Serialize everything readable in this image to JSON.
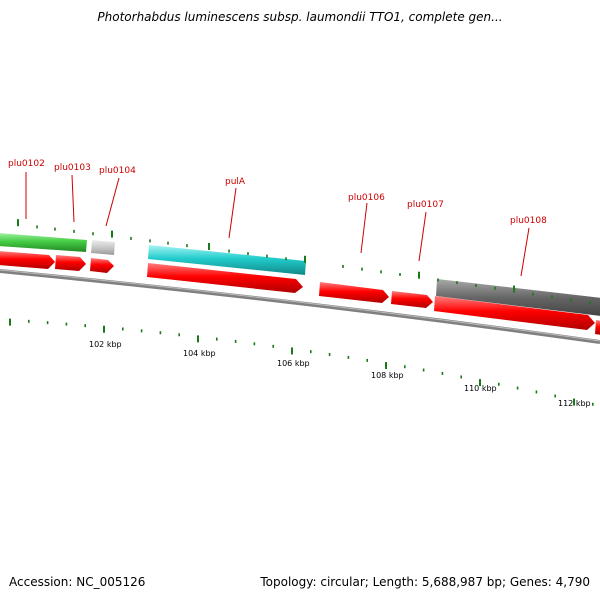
{
  "header": {
    "title": "Photorhabdus luminescens subsp. laumondii TTO1, complete gen..."
  },
  "footer": {
    "accession": "Accession: NC_005126",
    "stats": "Topology: circular; Length: 5,688,987 bp; Genes: 4,790"
  },
  "colors": {
    "forward_cds": "#ff0000",
    "highlight_green": "#44cc44",
    "highlight_cyan": "#22cccc",
    "highlight_gray_light": "#c8c8c8",
    "highlight_gray_dark": "#666666",
    "backbone": "#808080",
    "tick": "#1a7a1a",
    "label": "#cc0000"
  },
  "genes": [
    {
      "name": "plu0102"
    },
    {
      "name": "plu0103"
    },
    {
      "name": "plu0104"
    },
    {
      "name": "pulA"
    },
    {
      "name": "plu0106"
    },
    {
      "name": "plu0107"
    },
    {
      "name": "plu0108"
    }
  ],
  "scale_labels": [
    "102 kbp",
    "104 kbp",
    "106 kbp",
    "108 kbp",
    "110 kbp",
    "112 kbp"
  ]
}
